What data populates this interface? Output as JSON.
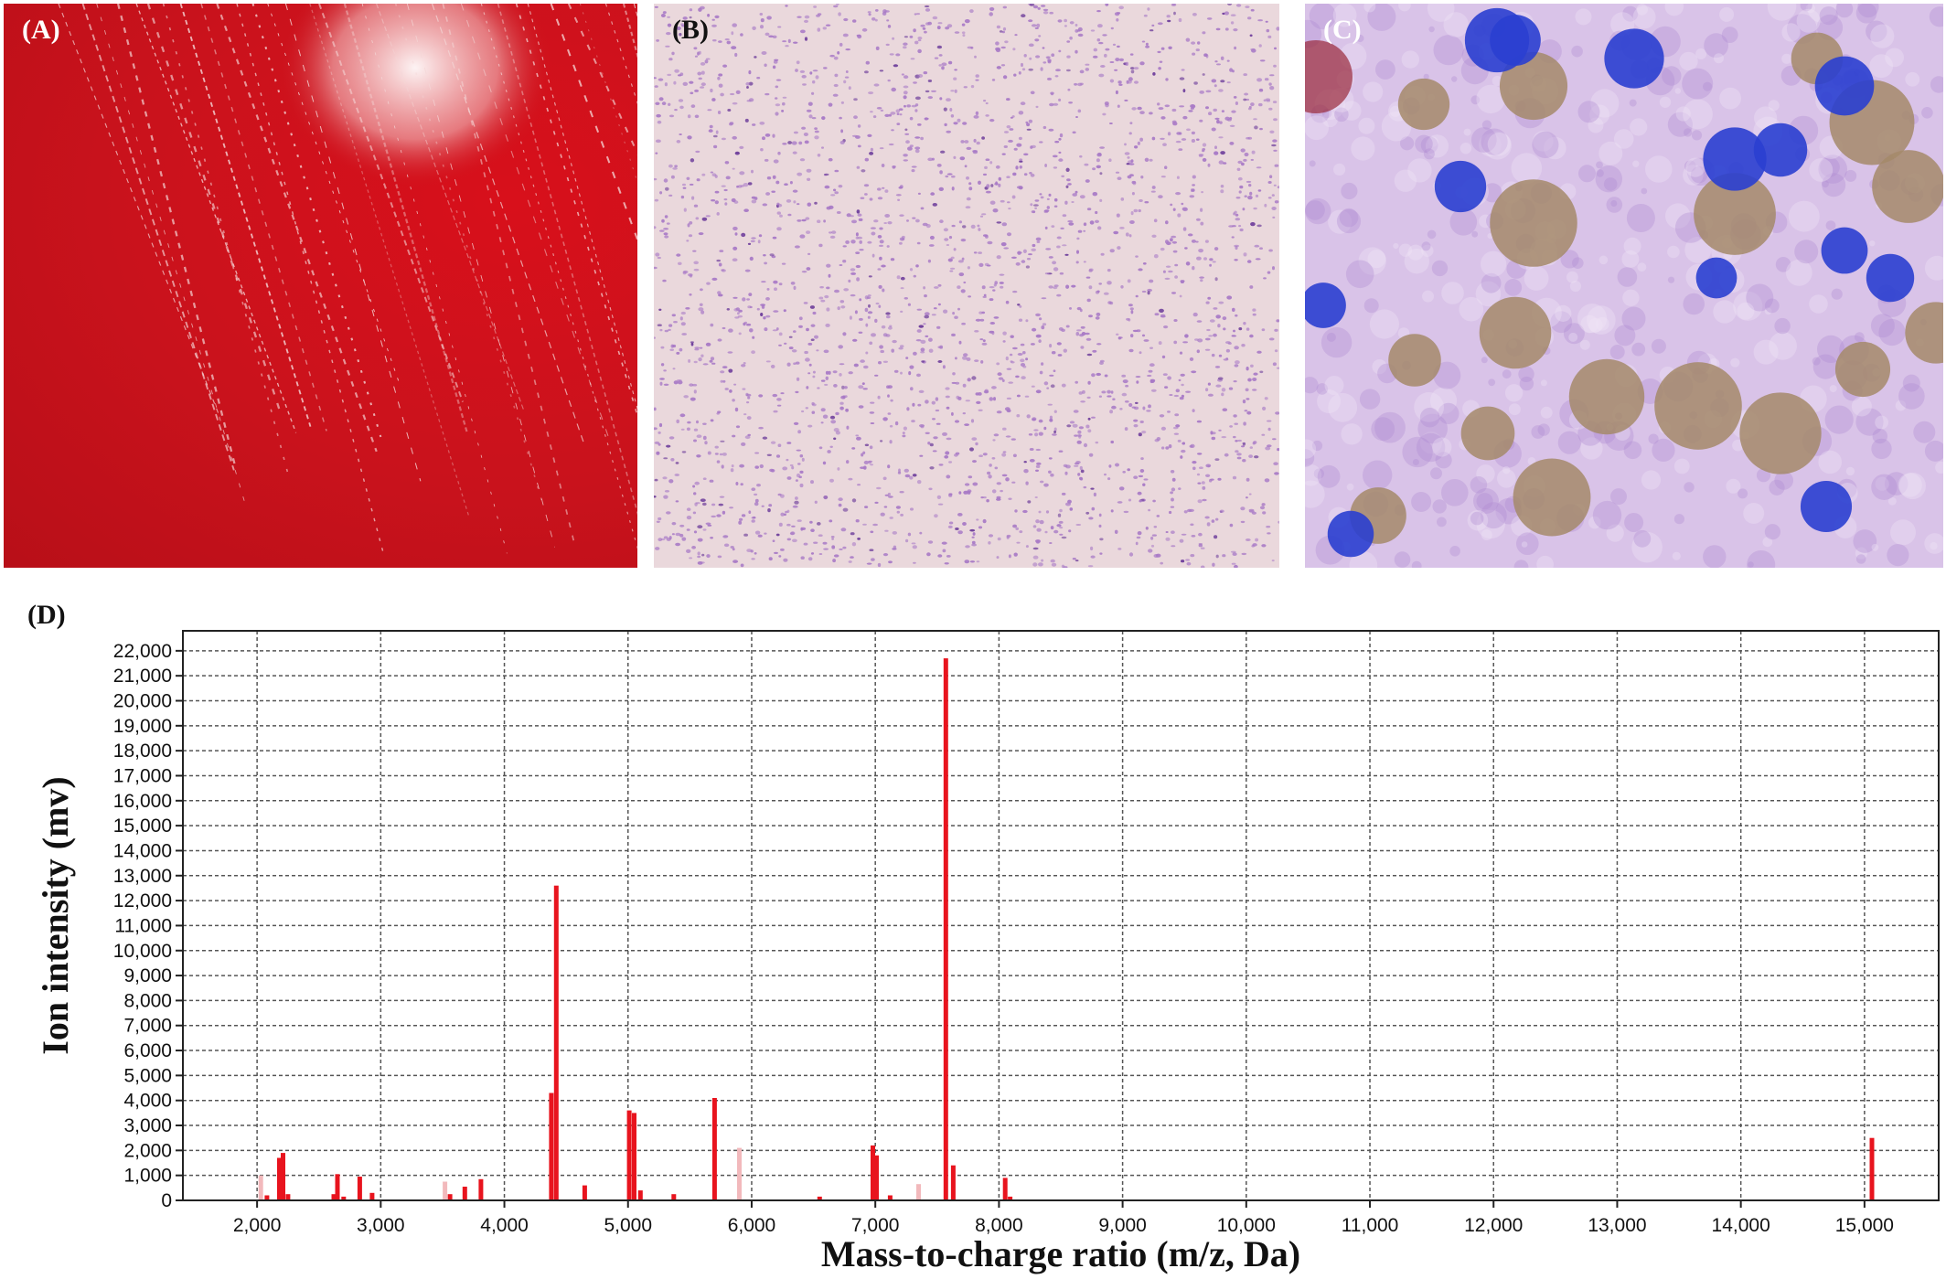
{
  "panels": {
    "a": {
      "label": "(A)"
    },
    "b": {
      "label": "(B)"
    },
    "c": {
      "label": "(C)"
    },
    "d": {
      "label": "(D)"
    }
  },
  "colors": {
    "agar_red": "#c9121c",
    "stain_purple": "#8a4fb0",
    "peak_red": "#e8141e",
    "peak_faint": "#f2b9bc",
    "grid": "#555555"
  },
  "chart_data": {
    "type": "bar",
    "xlabel": "Mass-to-charge ratio (m/z, Da)",
    "ylabel": "Ion intensity (mv)",
    "xlim": [
      1400,
      15600
    ],
    "ylim": [
      0,
      22800
    ],
    "x_ticks": [
      2000,
      3000,
      4000,
      5000,
      6000,
      7000,
      8000,
      9000,
      10000,
      11000,
      12000,
      13000,
      14000,
      15000
    ],
    "x_tick_labels": [
      "2,000",
      "3,000",
      "4,000",
      "5,000",
      "6,000",
      "7,000",
      "8,000",
      "9,000",
      "10,000",
      "11,000",
      "12,000",
      "13,000",
      "14,000",
      "15,000"
    ],
    "y_ticks": [
      0,
      1000,
      2000,
      3000,
      4000,
      5000,
      6000,
      7000,
      8000,
      9000,
      10000,
      11000,
      12000,
      13000,
      14000,
      15000,
      16000,
      17000,
      18000,
      19000,
      20000,
      21000,
      22000
    ],
    "y_tick_labels": [
      "0",
      "1,000",
      "2,000",
      "3,000",
      "4,000",
      "5,000",
      "6,000",
      "7,000",
      "8,000",
      "9,000",
      "10,000",
      "11,000",
      "12,000",
      "13,000",
      "14,000",
      "15,000",
      "16,000",
      "17,000",
      "18,000",
      "19,000",
      "20,000",
      "21,000",
      "22,000"
    ],
    "grid": true,
    "peaks": [
      {
        "x": 2030,
        "y": 1000,
        "faint": true
      },
      {
        "x": 2080,
        "y": 200,
        "faint": false
      },
      {
        "x": 2180,
        "y": 1700,
        "faint": false
      },
      {
        "x": 2210,
        "y": 1900,
        "faint": false
      },
      {
        "x": 2250,
        "y": 250,
        "faint": false
      },
      {
        "x": 2620,
        "y": 250,
        "faint": false
      },
      {
        "x": 2650,
        "y": 1050,
        "faint": false
      },
      {
        "x": 2700,
        "y": 150,
        "faint": false
      },
      {
        "x": 2830,
        "y": 950,
        "faint": false
      },
      {
        "x": 2930,
        "y": 300,
        "faint": false
      },
      {
        "x": 3520,
        "y": 750,
        "faint": true
      },
      {
        "x": 3560,
        "y": 250,
        "faint": false
      },
      {
        "x": 3680,
        "y": 550,
        "faint": false
      },
      {
        "x": 3810,
        "y": 850,
        "faint": false
      },
      {
        "x": 4380,
        "y": 4300,
        "faint": false
      },
      {
        "x": 4420,
        "y": 12600,
        "faint": false
      },
      {
        "x": 4650,
        "y": 600,
        "faint": false
      },
      {
        "x": 5010,
        "y": 3600,
        "faint": false
      },
      {
        "x": 5050,
        "y": 3500,
        "faint": false
      },
      {
        "x": 5100,
        "y": 400,
        "faint": false
      },
      {
        "x": 5370,
        "y": 250,
        "faint": false
      },
      {
        "x": 5700,
        "y": 4100,
        "faint": false
      },
      {
        "x": 5900,
        "y": 2100,
        "faint": true
      },
      {
        "x": 6550,
        "y": 150,
        "faint": false
      },
      {
        "x": 6980,
        "y": 2200,
        "faint": false
      },
      {
        "x": 7010,
        "y": 1800,
        "faint": false
      },
      {
        "x": 7120,
        "y": 200,
        "faint": false
      },
      {
        "x": 7350,
        "y": 650,
        "faint": true
      },
      {
        "x": 7570,
        "y": 21700,
        "faint": false
      },
      {
        "x": 7630,
        "y": 1400,
        "faint": false
      },
      {
        "x": 8050,
        "y": 900,
        "faint": false
      },
      {
        "x": 8090,
        "y": 150,
        "faint": false
      },
      {
        "x": 15060,
        "y": 2500,
        "faint": false
      }
    ]
  }
}
